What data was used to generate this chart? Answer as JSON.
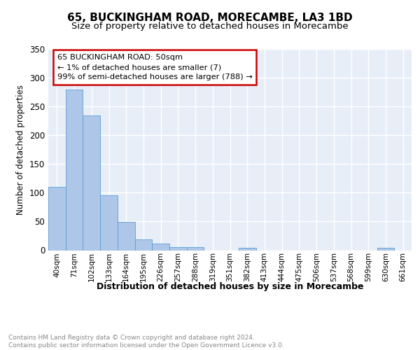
{
  "title": "65, BUCKINGHAM ROAD, MORECAMBE, LA3 1BD",
  "subtitle": "Size of property relative to detached houses in Morecambe",
  "xlabel": "Distribution of detached houses by size in Morecambe",
  "ylabel": "Number of detached properties",
  "categories": [
    "40sqm",
    "71sqm",
    "102sqm",
    "133sqm",
    "164sqm",
    "195sqm",
    "226sqm",
    "257sqm",
    "288sqm",
    "319sqm",
    "351sqm",
    "382sqm",
    "413sqm",
    "444sqm",
    "475sqm",
    "506sqm",
    "537sqm",
    "568sqm",
    "599sqm",
    "630sqm",
    "661sqm"
  ],
  "values": [
    110,
    280,
    234,
    95,
    49,
    19,
    12,
    5,
    5,
    0,
    0,
    4,
    0,
    0,
    0,
    0,
    0,
    0,
    0,
    4,
    0
  ],
  "bar_color": "#aec6e8",
  "bar_edge_color": "#5a9fd4",
  "annotation_text": "65 BUCKINGHAM ROAD: 50sqm\n← 1% of detached houses are smaller (7)\n99% of semi-detached houses are larger (788) →",
  "annotation_box_color": "#ffffff",
  "annotation_box_edge_color": "#cc0000",
  "bg_color": "#e8eef8",
  "grid_color": "#ffffff",
  "footer_text": "Contains HM Land Registry data © Crown copyright and database right 2024.\nContains public sector information licensed under the Open Government Licence v3.0.",
  "ylim": [
    0,
    350
  ],
  "yticks": [
    0,
    50,
    100,
    150,
    200,
    250,
    300,
    350
  ],
  "title_fontsize": 11,
  "subtitle_fontsize": 9.5
}
